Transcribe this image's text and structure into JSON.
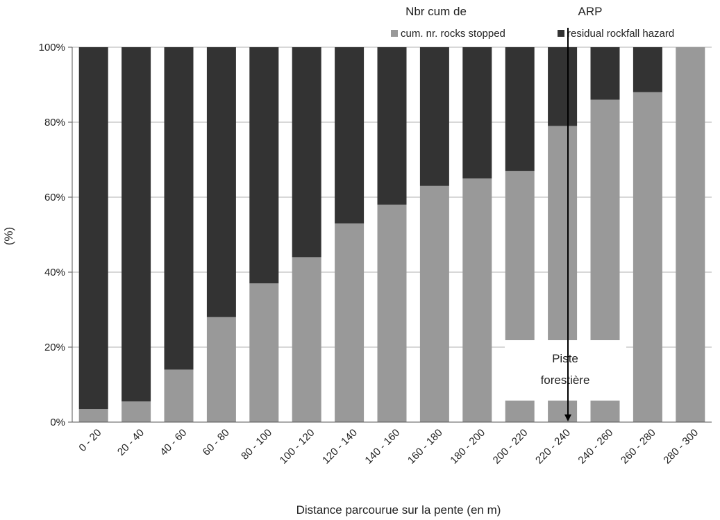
{
  "chart_data": {
    "type": "bar",
    "stacked": true,
    "categories": [
      "0 - 20",
      "20 - 40",
      "40 - 60",
      "60 - 80",
      "80 - 100",
      "100 - 120",
      "120 - 140",
      "140 - 160",
      "160 - 180",
      "180 - 200",
      "200 - 220",
      "220 - 240",
      "240 - 260",
      "260 - 280",
      "280 - 300"
    ],
    "series": [
      {
        "name": "cum. nr. rocks stopped",
        "color": "#999999",
        "values": [
          3.5,
          5.5,
          14,
          28,
          37,
          44,
          53,
          58,
          63,
          65,
          67,
          79,
          86,
          88,
          100
        ]
      },
      {
        "name": "residual rockfall hazard",
        "color": "#333333",
        "values": [
          96.5,
          94.5,
          86,
          72,
          63,
          56,
          47,
          42,
          37,
          35,
          33,
          21,
          14,
          12,
          0
        ]
      }
    ],
    "xlabel": "Distance parcourue sur la pente (en m)",
    "ylabel": "(%)",
    "ylim": [
      0,
      100
    ],
    "yticks": [
      "0%",
      "20%",
      "40%",
      "60%",
      "80%",
      "100%"
    ],
    "grid": true,
    "legend": "top",
    "header_labels": [
      "Nbr cum de",
      "ARP"
    ],
    "annotation": {
      "lines": [
        "Piste",
        "forestière"
      ],
      "category": "220 - 240"
    }
  }
}
